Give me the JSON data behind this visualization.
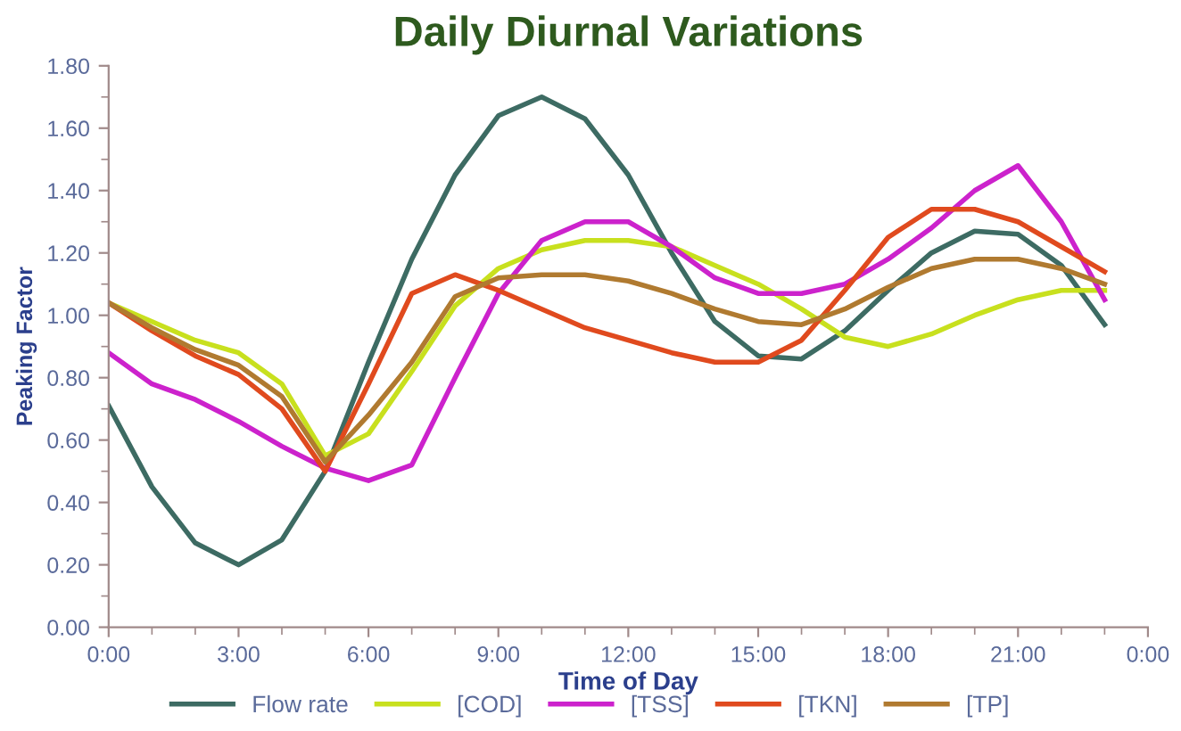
{
  "chart_data": {
    "type": "line",
    "title": "Daily Diurnal Variations",
    "xlabel": "Time of Day",
    "ylabel": "Peaking Factor",
    "x": [
      0,
      1,
      2,
      3,
      4,
      5,
      6,
      7,
      8,
      9,
      10,
      11,
      12,
      13,
      14,
      15,
      16,
      17,
      18,
      19,
      20,
      21,
      22,
      23
    ],
    "series": [
      {
        "name": "Flow rate",
        "color": "#3d6b63",
        "values": [
          0.71,
          0.45,
          0.27,
          0.2,
          0.28,
          0.5,
          0.85,
          1.18,
          1.45,
          1.64,
          1.7,
          1.63,
          1.45,
          1.2,
          0.98,
          0.87,
          0.86,
          0.95,
          1.08,
          1.2,
          1.27,
          1.26,
          1.16,
          0.97
        ]
      },
      {
        "name": "[COD]",
        "color": "#c8e01e",
        "values": [
          1.04,
          0.98,
          0.92,
          0.88,
          0.78,
          0.55,
          0.62,
          0.82,
          1.03,
          1.15,
          1.21,
          1.24,
          1.24,
          1.22,
          1.16,
          1.1,
          1.02,
          0.93,
          0.9,
          0.94,
          1.0,
          1.05,
          1.08,
          1.08
        ]
      },
      {
        "name": "[TSS]",
        "color": "#cc22cc",
        "values": [
          0.88,
          0.78,
          0.73,
          0.66,
          0.58,
          0.51,
          0.47,
          0.52,
          0.8,
          1.07,
          1.24,
          1.3,
          1.3,
          1.22,
          1.12,
          1.07,
          1.07,
          1.1,
          1.18,
          1.28,
          1.4,
          1.48,
          1.3,
          1.05
        ]
      },
      {
        "name": "[TKN]",
        "color": "#e04a1e",
        "values": [
          1.04,
          0.95,
          0.87,
          0.81,
          0.7,
          0.5,
          0.78,
          1.07,
          1.13,
          1.08,
          1.02,
          0.96,
          0.92,
          0.88,
          0.85,
          0.85,
          0.92,
          1.08,
          1.25,
          1.34,
          1.34,
          1.3,
          1.22,
          1.14
        ]
      },
      {
        "name": "[TP]",
        "color": "#b07a30",
        "values": [
          1.04,
          0.96,
          0.89,
          0.84,
          0.74,
          0.53,
          0.68,
          0.85,
          1.06,
          1.12,
          1.13,
          1.13,
          1.11,
          1.07,
          1.02,
          0.98,
          0.97,
          1.02,
          1.09,
          1.15,
          1.18,
          1.18,
          1.15,
          1.1
        ]
      }
    ],
    "xlim": [
      0,
      24
    ],
    "xticks": [
      {
        "value": 0,
        "label": "0:00"
      },
      {
        "value": 3,
        "label": "3:00"
      },
      {
        "value": 6,
        "label": "6:00"
      },
      {
        "value": 9,
        "label": "9:00"
      },
      {
        "value": 12,
        "label": "12:00"
      },
      {
        "value": 15,
        "label": "15:00"
      },
      {
        "value": 18,
        "label": "18:00"
      },
      {
        "value": 21,
        "label": "21:00"
      },
      {
        "value": 24,
        "label": "0:00"
      }
    ],
    "ylim": [
      0,
      1.8
    ],
    "yticks": [
      {
        "value": 0,
        "label": "0.00"
      },
      {
        "value": 0.2,
        "label": "0.20"
      },
      {
        "value": 0.4,
        "label": "0.40"
      },
      {
        "value": 0.6,
        "label": "0.60"
      },
      {
        "value": 0.8,
        "label": "0.80"
      },
      {
        "value": 1.0,
        "label": "1.00"
      },
      {
        "value": 1.2,
        "label": "1.20"
      },
      {
        "value": 1.4,
        "label": "1.40"
      },
      {
        "value": 1.6,
        "label": "1.60"
      },
      {
        "value": 1.8,
        "label": "1.80"
      }
    ],
    "grid": false,
    "legend": "bottom",
    "marker": "none",
    "line_style": "solid"
  }
}
